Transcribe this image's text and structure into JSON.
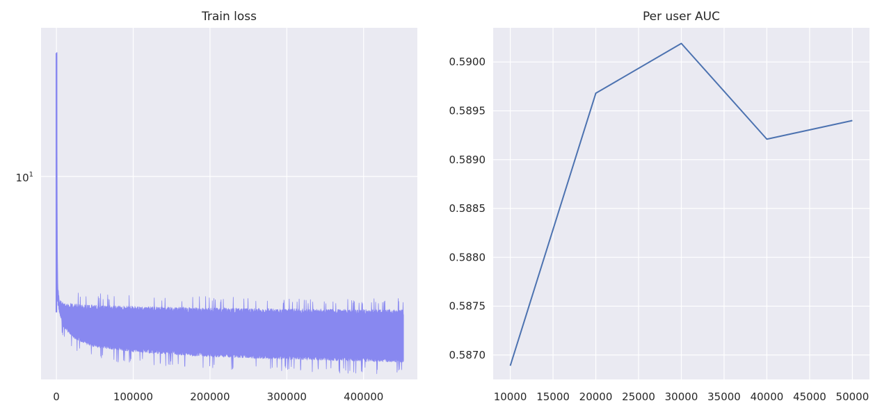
{
  "chart_data": [
    {
      "type": "line",
      "title": "Train loss",
      "xlabel": "",
      "ylabel": "",
      "yscale": "log",
      "grid": true,
      "xlim": [
        -20000,
        470000
      ],
      "ylim": [
        2.45,
        28
      ],
      "x_ticks": [
        0,
        100000,
        200000,
        300000,
        400000
      ],
      "x_tick_labels": [
        "0",
        "100000",
        "200000",
        "300000",
        "400000"
      ],
      "y_ticks": [
        10
      ],
      "y_tick_labels": [
        {
          "base": "10",
          "exp": "1"
        }
      ],
      "color": "#8888f0",
      "series": [
        {
          "x_range": [
            0,
            452000
          ],
          "initial_value": 23.5,
          "envelope_upper": [
            [
              0,
              23.5
            ],
            [
              500,
              8.0
            ],
            [
              1500,
              4.6
            ],
            [
              4000,
              4.1
            ],
            [
              10000,
              4.0
            ],
            [
              50000,
              3.95
            ],
            [
              100000,
              3.92
            ],
            [
              200000,
              3.87
            ],
            [
              300000,
              3.85
            ],
            [
              400000,
              3.83
            ],
            [
              452000,
              3.82
            ]
          ],
          "envelope_lower": [
            [
              0,
              23.5
            ],
            [
              500,
              8.0
            ],
            [
              1500,
              4.3
            ],
            [
              5000,
              3.85
            ],
            [
              10000,
              3.6
            ],
            [
              25000,
              3.32
            ],
            [
              50000,
              3.15
            ],
            [
              100000,
              3.05
            ],
            [
              200000,
              2.95
            ],
            [
              300000,
              2.9
            ],
            [
              400000,
              2.86
            ],
            [
              452000,
              2.84
            ]
          ]
        }
      ]
    },
    {
      "type": "line",
      "title": "Per user AUC",
      "xlabel": "",
      "ylabel": "",
      "grid": true,
      "xlim": [
        8000,
        52000
      ],
      "ylim": [
        0.58675,
        0.59035
      ],
      "x_ticks": [
        10000,
        15000,
        20000,
        25000,
        30000,
        35000,
        40000,
        45000,
        50000
      ],
      "x_tick_labels": [
        "10000",
        "15000",
        "20000",
        "25000",
        "30000",
        "35000",
        "40000",
        "45000",
        "50000"
      ],
      "y_ticks": [
        0.587,
        0.5875,
        0.588,
        0.5885,
        0.589,
        0.5895,
        0.59
      ],
      "y_tick_labels": [
        "0.5870",
        "0.5875",
        "0.5880",
        "0.5885",
        "0.5890",
        "0.5895",
        "0.5900"
      ],
      "color": "#4c72b0",
      "series": [
        {
          "x": [
            10000,
            20000,
            30000,
            40000,
            50000
          ],
          "y": [
            0.58689,
            0.58968,
            0.59019,
            0.58921,
            0.5894
          ]
        }
      ]
    }
  ]
}
